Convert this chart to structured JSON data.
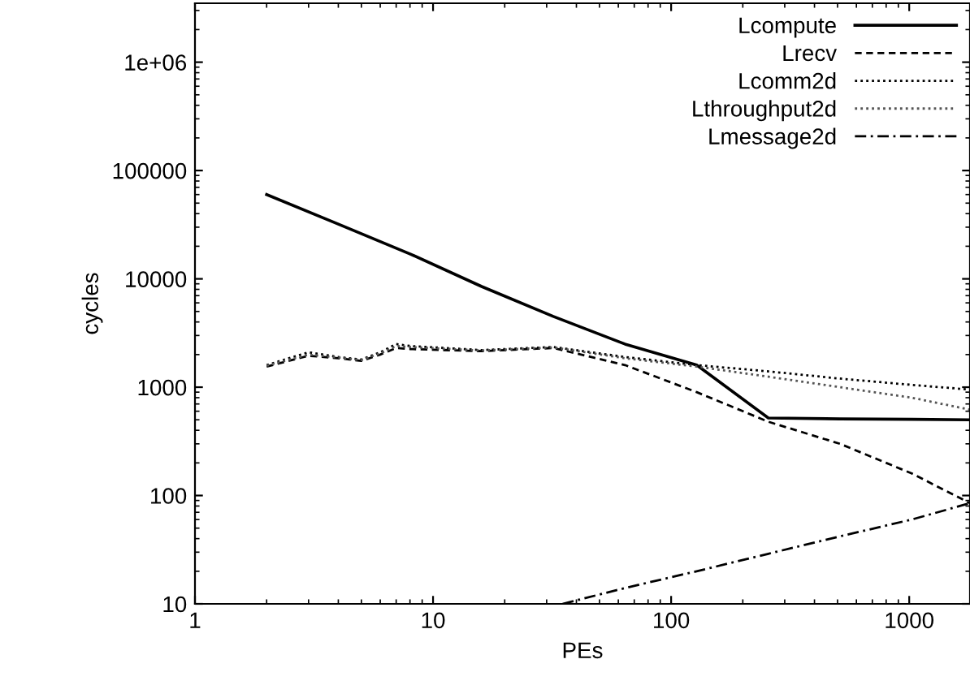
{
  "chart_data": {
    "type": "line",
    "xlabel": "PEs",
    "ylabel": "cycles",
    "log": "xy",
    "grid": false,
    "legend": "top right",
    "xlim": [
      1,
      1800
    ],
    "ylim": [
      10,
      3500000
    ],
    "xticks": [
      1,
      10,
      100,
      1000
    ],
    "yticks": [
      10,
      100,
      1000,
      10000,
      100000,
      {
        "value": 1000000,
        "label": "1e+06"
      }
    ],
    "series": [
      {
        "name": "Lcompute",
        "color": "#000000",
        "line_style": "solid",
        "x": [
          2,
          4,
          8,
          16,
          32,
          64,
          128,
          256,
          512,
          1024,
          1800
        ],
        "values": [
          60000,
          32000,
          17000,
          8500,
          4500,
          2500,
          1600,
          520,
          510,
          505,
          500
        ]
      },
      {
        "name": "Lrecv",
        "color": "#000000",
        "line_style": "dashed",
        "x": [
          2,
          3,
          4,
          5,
          6,
          7,
          8,
          16,
          32,
          64,
          128,
          256,
          512,
          1024,
          1800
        ],
        "values": [
          1550,
          1950,
          1850,
          1750,
          2000,
          2300,
          2250,
          2150,
          2300,
          1600,
          900,
          480,
          300,
          160,
          85
        ]
      },
      {
        "name": "Lcomm2d",
        "color": "#000000",
        "line_style": "dotted",
        "x": [
          2,
          3,
          4,
          5,
          6,
          7,
          8,
          16,
          32,
          64,
          128,
          256,
          512,
          1024,
          1800
        ],
        "values": [
          1600,
          2100,
          1900,
          1800,
          2100,
          2500,
          2400,
          2200,
          2350,
          1900,
          1600,
          1400,
          1200,
          1050,
          950
        ]
      },
      {
        "name": "Lthroughput2d",
        "color": "#555555",
        "line_style": "dotted",
        "x": [
          2,
          3,
          4,
          5,
          6,
          7,
          8,
          16,
          32,
          64,
          128,
          256,
          512,
          1024,
          1800
        ],
        "values": [
          1580,
          2000,
          1880,
          1780,
          2050,
          2400,
          2350,
          2180,
          2330,
          1850,
          1550,
          1250,
          1000,
          800,
          620
        ]
      },
      {
        "name": "Lmessage2d",
        "color": "#000000",
        "line_style": "dashdot",
        "x": [
          35,
          64,
          128,
          256,
          512,
          1024,
          1800
        ],
        "values": [
          10,
          14,
          20,
          29,
          42,
          60,
          85
        ]
      }
    ]
  }
}
